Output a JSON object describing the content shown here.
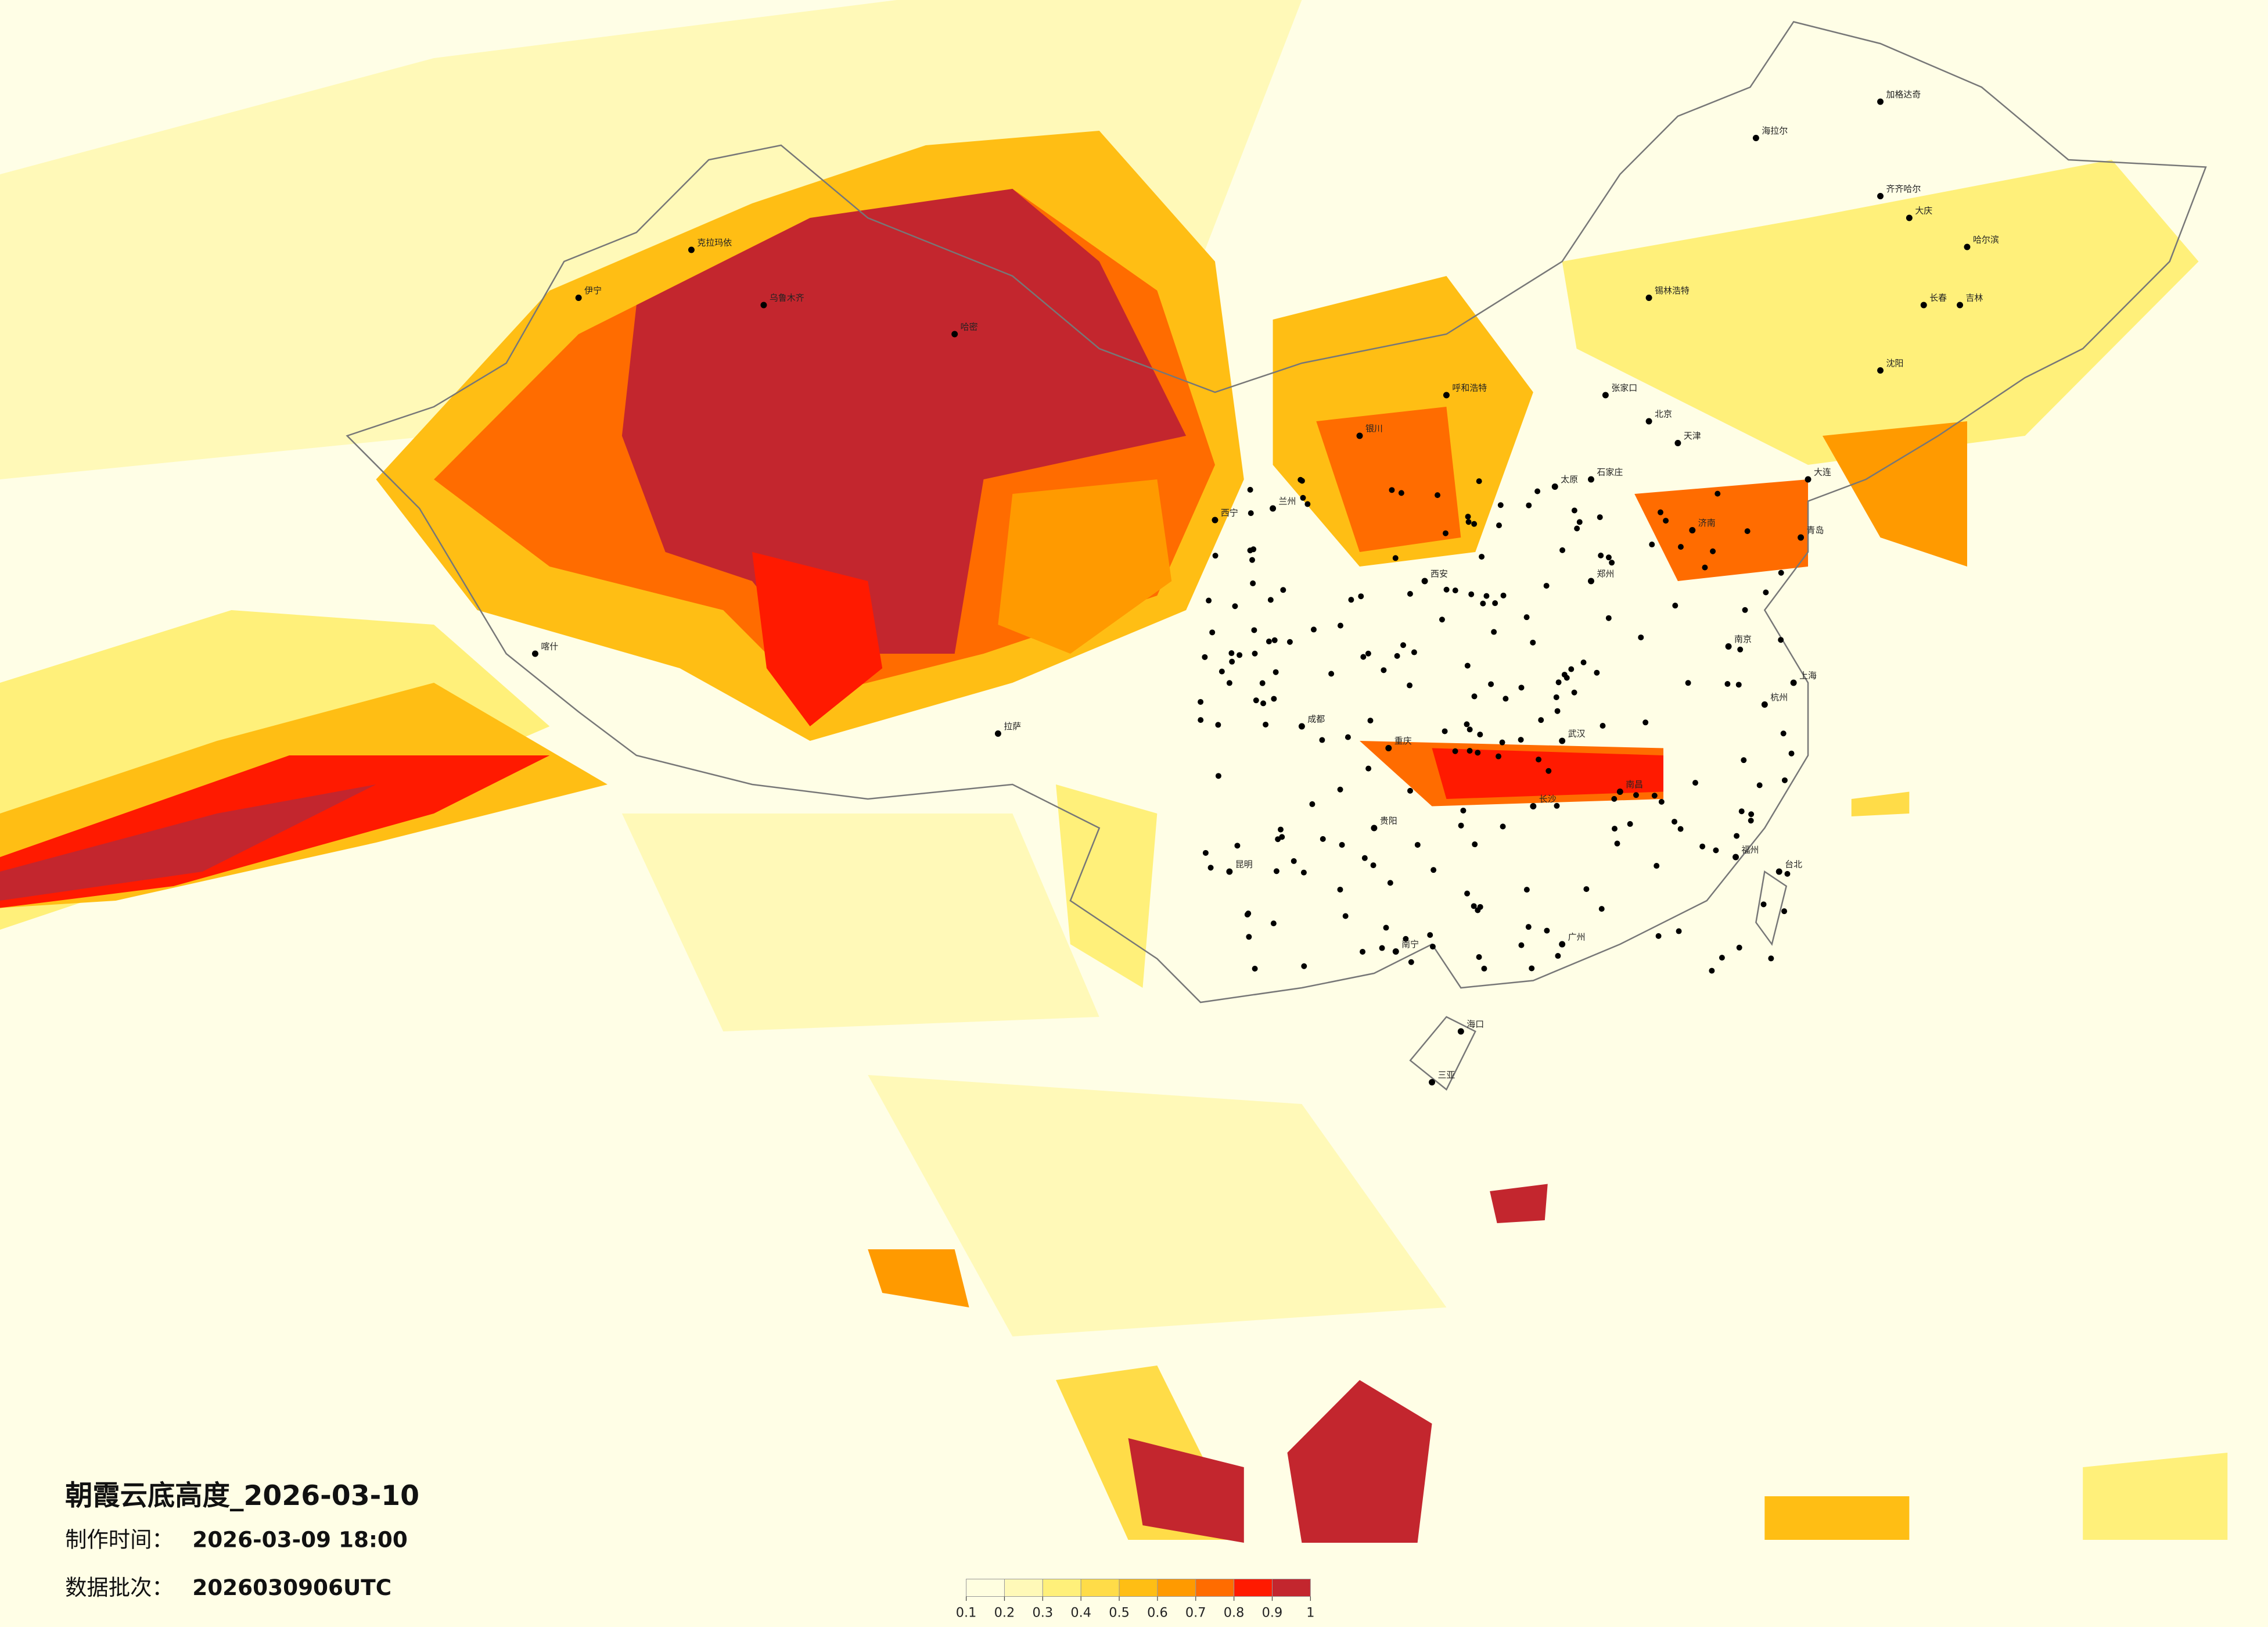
{
  "title": "朝霞云底高度_2026-03-10",
  "info": [
    {
      "label": "制作时间：",
      "value": "2026-03-09 18:00"
    },
    {
      "label": "数据批次：",
      "value": "2026030906UTC"
    }
  ],
  "legend": {
    "ticks": [
      0.1,
      0.2,
      0.3,
      0.4,
      0.5,
      0.6,
      0.7,
      0.8,
      0.9,
      1
    ],
    "colors": [
      "#fffee0",
      "#fff9b8",
      "#fff07a",
      "#ffdc48",
      "#ffbe14",
      "#ff9a00",
      "#ff6c00",
      "#ff1a00",
      "#c3262e"
    ]
  },
  "cities": [
    "海拉尔",
    "加格达奇",
    "齐齐哈尔",
    "大庆",
    "哈尔滨",
    "长春",
    "吉林",
    "沈阳",
    "锡林浩特",
    "张家口",
    "北京",
    "天津",
    "呼和浩特",
    "太原",
    "石家庄",
    "济南",
    "郑州",
    "西安",
    "兰州",
    "西宁",
    "银川",
    "成都",
    "重庆",
    "武汉",
    "南京",
    "上海",
    "杭州",
    "长沙",
    "南昌",
    "福州",
    "广州",
    "南宁",
    "昆明",
    "贵阳",
    "拉萨",
    "台北",
    "海口",
    "三亚",
    "大连",
    "青岛",
    "哈密",
    "乌鲁木齐",
    "克拉玛依",
    "伊宁",
    "喀什"
  ]
}
